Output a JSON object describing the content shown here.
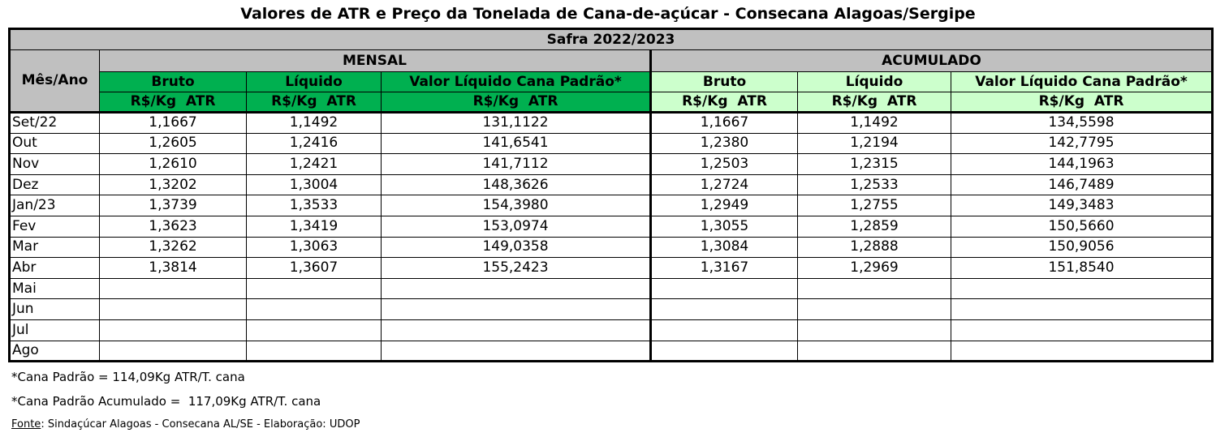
{
  "title": "Valores de ATR e Preço da Tonelada de Cana-de-açúcar - Consecana Alagoas/Sergipe",
  "table": {
    "season": "Safra 2022/2023",
    "row_header": "Mês/Ano",
    "groups": [
      "MENSAL",
      "ACUMULADO"
    ],
    "columns": [
      "Bruto",
      "Líquido",
      "Valor Líquido Cana Padrão*",
      "Bruto",
      "Líquido",
      "Valor Líquido Cana Padrão*"
    ],
    "units": [
      "R$/Kg  ATR",
      "R$/Kg  ATR",
      "R$/Kg  ATR",
      "R$/Kg  ATR",
      "R$/Kg  ATR",
      "R$/Kg  ATR"
    ],
    "rows": [
      [
        "Set/22",
        "1,1667",
        "1,1492",
        "131,1122",
        "1,1667",
        "1,1492",
        "134,5598"
      ],
      [
        "Out",
        "1,2605",
        "1,2416",
        "141,6541",
        "1,2380",
        "1,2194",
        "142,7795"
      ],
      [
        "Nov",
        "1,2610",
        "1,2421",
        "141,7112",
        "1,2503",
        "1,2315",
        "144,1963"
      ],
      [
        "Dez",
        "1,3202",
        "1,3004",
        "148,3626",
        "1,2724",
        "1,2533",
        "146,7489"
      ],
      [
        "Jan/23",
        "1,3739",
        "1,3533",
        "154,3980",
        "1,2949",
        "1,2755",
        "149,3483"
      ],
      [
        "Fev",
        "1,3623",
        "1,3419",
        "153,0974",
        "1,3055",
        "1,2859",
        "150,5660"
      ],
      [
        "Mar",
        "1,3262",
        "1,3063",
        "149,0358",
        "1,3084",
        "1,2888",
        "150,9056"
      ],
      [
        "Abr",
        "1,3814",
        "1,3607",
        "155,2423",
        "1,3167",
        "1,2969",
        "151,8540"
      ],
      [
        "Mai"
      ],
      [
        "Jun"
      ],
      [
        "Jul"
      ],
      [
        "Ago"
      ]
    ]
  },
  "notes": [
    "*Cana Padrão = 114,09Kg ATR/T. cana",
    "*Cana Padrão Acumulado =  117,09Kg ATR/T. cana"
  ],
  "source": {
    "label": "Fonte",
    "text": ": Sindaçúcar Alagoas - Consecana AL/SE - Elaboração: UDOP"
  }
}
